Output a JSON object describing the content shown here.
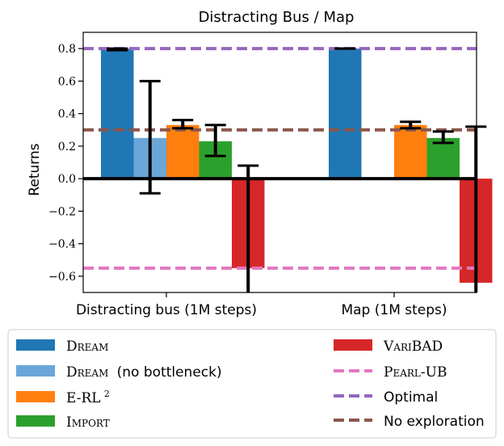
{
  "chart_data": {
    "type": "bar",
    "title": "Distracting Bus / Map",
    "xlabel": "",
    "ylabel": "Returns",
    "ylim": [
      -0.7,
      0.9
    ],
    "yticks": [
      -0.6,
      -0.4,
      -0.2,
      0.0,
      0.2,
      0.4,
      0.6,
      0.8
    ],
    "ytick_labels": [
      "−0.6",
      "−0.4",
      "−0.2",
      "0.0",
      "0.2",
      "0.4",
      "0.6",
      "0.8"
    ],
    "categories": [
      "Distracting bus (1M steps)",
      "Map (1M steps)"
    ],
    "series": [
      {
        "name": "DREAM",
        "color": "#1f77b4",
        "values": [
          0.8,
          0.8
        ],
        "err_low": [
          0.79,
          0.8
        ],
        "err_high": [
          0.8,
          0.8
        ]
      },
      {
        "name": "DREAM (no bottleneck)",
        "color": "#6aa6d8",
        "values": [
          0.25,
          null
        ],
        "err_low": [
          -0.09,
          null
        ],
        "err_high": [
          0.6,
          null
        ]
      },
      {
        "name": "E-RL²",
        "color": "#ff7f0e",
        "values": [
          0.33,
          0.33
        ],
        "err_low": [
          0.31,
          0.31
        ],
        "err_high": [
          0.36,
          0.35
        ]
      },
      {
        "name": "IMPORT",
        "color": "#2ca02c",
        "values": [
          0.23,
          0.25
        ],
        "err_low": [
          0.14,
          0.22
        ],
        "err_high": [
          0.33,
          0.29
        ]
      },
      {
        "name": "VARIBAD",
        "color": "#d62728",
        "values": [
          -0.55,
          -0.64
        ],
        "err_low": [
          -0.7,
          -0.7
        ],
        "err_high": [
          0.08,
          0.32
        ]
      }
    ],
    "reference_lines": [
      {
        "name": "PEARL-UB",
        "value": -0.55,
        "color": "#e377c2"
      },
      {
        "name": "Optimal",
        "value": 0.8,
        "color": "#9467bd"
      },
      {
        "name": "No exploration",
        "value": 0.3,
        "color": "#8c564b"
      }
    ],
    "legend": {
      "placement": "bottom",
      "left_labels": {
        "dream": "Dream",
        "dream_nb_main": "Dream",
        "dream_nb_suffix": "(no bottleneck)",
        "erl_main": "E-RL",
        "erl_sup": "2",
        "import": "Import"
      },
      "right_labels": {
        "varibad": "VariBAD",
        "pearl": "Pearl-UB",
        "optimal": "Optimal",
        "noexp": "No exploration"
      }
    }
  }
}
